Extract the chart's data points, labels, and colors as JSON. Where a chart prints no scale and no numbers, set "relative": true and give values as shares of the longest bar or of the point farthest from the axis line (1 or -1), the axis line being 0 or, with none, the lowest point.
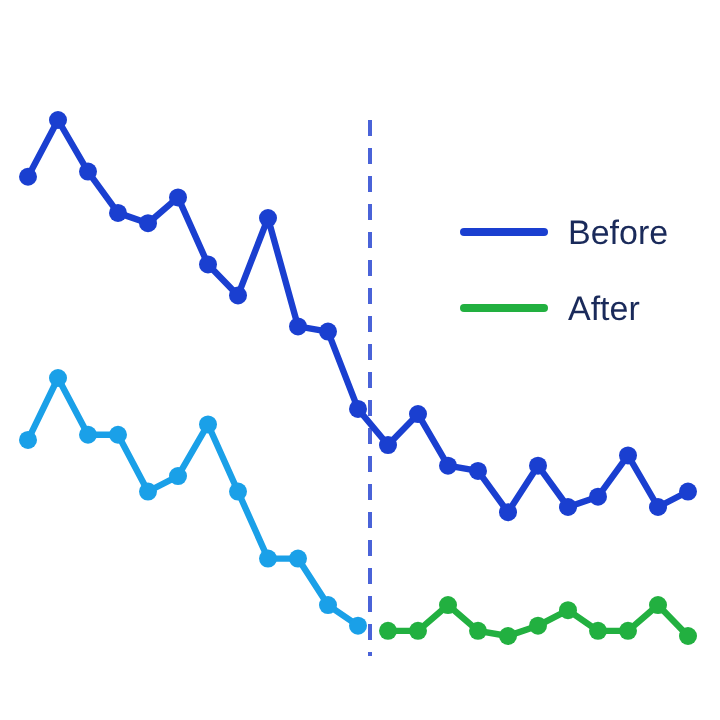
{
  "chart_data": {
    "type": "line",
    "relative": true,
    "categories": [
      null,
      null,
      null,
      null,
      null,
      null,
      null,
      null,
      null,
      null,
      null,
      null,
      null,
      null,
      null,
      null,
      null,
      null,
      null,
      null,
      null,
      null,
      null
    ],
    "marker": "circle",
    "legend": "top right",
    "series": [
      {
        "name": "Before",
        "color": "#1a3fd0",
        "values": [
          0.89,
          1,
          0.9,
          0.82,
          0.8,
          0.85,
          0.72,
          0.66,
          0.81,
          0.6,
          0.59,
          0.44,
          0.37,
          0.43,
          0.33,
          0.32,
          0.24,
          0.33,
          0.25,
          0.27,
          0.35,
          0.25,
          0.28
        ]
      },
      {
        "color": "#1aa0e8",
        "values": [
          0.38,
          0.5,
          0.39,
          0.39,
          0.28,
          0.31,
          0.41,
          0.28,
          0.15,
          0.15,
          0.06,
          0.02,
          null,
          null,
          null,
          null,
          null,
          null,
          null,
          null,
          null,
          null,
          null
        ]
      },
      {
        "name": "After",
        "color": "#22b040",
        "values": [
          null,
          null,
          null,
          null,
          null,
          null,
          null,
          null,
          null,
          null,
          null,
          null,
          0.01,
          0.01,
          0.06,
          0.01,
          0,
          0.02,
          0.05,
          0.01,
          0.01,
          0.06,
          0
        ]
      }
    ]
  }
}
